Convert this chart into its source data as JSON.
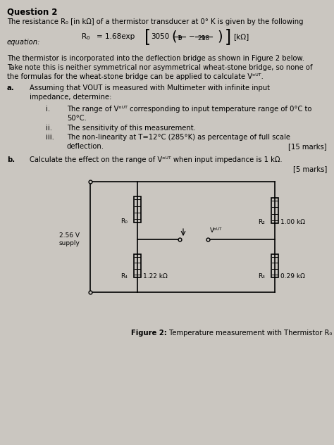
{
  "bg_color": "#cac6c0",
  "title": "Question 2",
  "line1": "The resistance R₀ [in kΩ] of a thermistor transducer at 0° K is given by the following",
  "eq_label": "equation:",
  "para1": "The thermistor is incorporated into the deflection bridge as shown in Figure 2 below.",
  "para2": "Take note this is neither symmetrical nor asymmetrical wheat-stone bridge, so none of",
  "para3": "the formulas for the wheat-stone bridge can be applied to calculate Vᵒᵁᵀ.",
  "a_label": "a.",
  "a_text1": "Assuming that VOUT is measured with Multimeter with infinite input",
  "a_text2": "impedance, determine:",
  "i_label": "i.",
  "i_text1": "The range of Vᵒᵁᵀ corresponding to input temperature range of 0°C to",
  "i_text2": "50°C.",
  "ii_label": "ii.",
  "ii_text": "The sensitivity of this measurement.",
  "iii_label": "iii.",
  "iii_text1": "The non-linearity at T=12°C (285°K) as percentage of full scale",
  "iii_text2": "deflection.",
  "marks15": "[15 marks]",
  "b_label": "b.",
  "b_text": "Calculate the effect on the range of Vᵒᵁᵀ when input impedance is 1 kΩ.",
  "marks5": "[5 marks]",
  "supply_label": "2.56 V\nsupply",
  "R0_label": "R₀",
  "R2_label": "R₂",
  "R2_val": "1.00 kΩ",
  "R4_label": "R₄",
  "R4_val": "1.22 kΩ",
  "R3_label": "R₃",
  "R3_val": "0.29 kΩ",
  "vout_label": "Vᵒᵁᵀ",
  "fig_caption_bold": "Figure 2:",
  "fig_caption_normal": " Temperature measurement with Thermistor R₀"
}
